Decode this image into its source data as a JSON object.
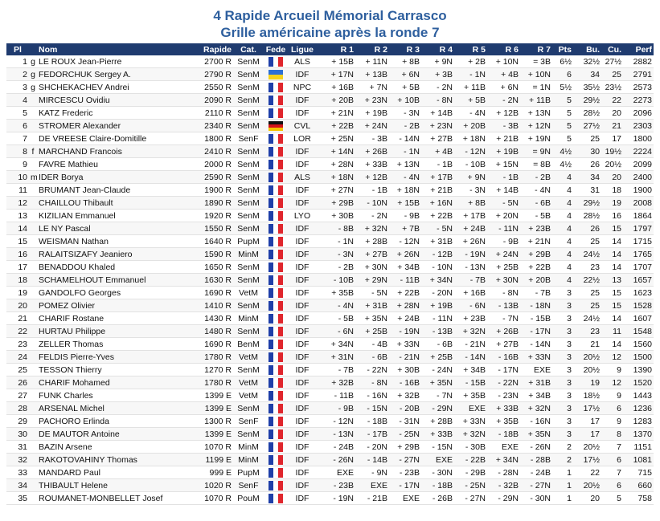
{
  "header": {
    "title": "4 Rapide Arcueil Mémorial Carrasco",
    "subtitle": "Grille américaine après la ronde 7"
  },
  "table": {
    "headers": [
      "Pl",
      "Nom",
      "Rapide",
      "Cat.",
      "Fede",
      "Ligue",
      "R 1",
      "R 2",
      "R 3",
      "R 4",
      "R 5",
      "R 6",
      "R 7",
      "Pts",
      "Bu.",
      "Cu.",
      "Perf"
    ],
    "rows": [
      [
        "1",
        "g",
        "LE ROUX Jean-Pierre",
        "2700 R",
        "SenM",
        "ALS",
        "+ 15B",
        "+ 11N",
        "+ 8B",
        "+ 9N",
        "+ 2B",
        "+ 10N",
        "= 3B",
        "6½",
        "32½",
        "27½",
        "2882"
      ],
      [
        "2",
        "g",
        "FEDORCHUK Sergey A.",
        "2790 R",
        "SenM",
        "IDF",
        "+ 17N",
        "+ 13B",
        "+ 6N",
        "+ 3B",
        "- 1N",
        "+ 4B",
        "+ 10N",
        "6",
        "34",
        "25",
        "2791"
      ],
      [
        "3",
        "g",
        "SHCHEKACHEV Andrei",
        "2550 R",
        "SenM",
        "NPC",
        "+ 16B",
        "+ 7N",
        "+ 5B",
        "- 2N",
        "+ 11B",
        "+ 6N",
        "= 1N",
        "5½",
        "35½",
        "23½",
        "2573"
      ],
      [
        "4",
        null,
        "MIRCESCU Ovidiu",
        "2090 R",
        "SenM",
        "IDF",
        "+ 20B",
        "+ 23N",
        "+ 10B",
        "- 8N",
        "+ 5B",
        "- 2N",
        "+ 11B",
        "5",
        "29½",
        "22",
        "2273"
      ],
      [
        "5",
        null,
        "KATZ Frederic",
        "2110 R",
        "SenM",
        "IDF",
        "+ 21N",
        "+ 19B",
        "- 3N",
        "+ 14B",
        "- 4N",
        "+ 12B",
        "+ 13N",
        "5",
        "28½",
        "20",
        "2096"
      ],
      [
        "6",
        null,
        "STROMER Alexander",
        "2340 R",
        "SenM",
        "CVL",
        "+ 22B",
        "+ 24N",
        "- 2B",
        "+ 23N",
        "+ 20B",
        "- 3B",
        "+ 12N",
        "5",
        "27½",
        "21",
        "2303"
      ],
      [
        "7",
        null,
        "DE VREESE Claire-Domitille",
        "1800 R",
        "SenF",
        "LOR",
        "+ 25N",
        "- 3B",
        "- 14N",
        "+ 27B",
        "+ 18N",
        "+ 21B",
        "+ 19N",
        "5",
        "25",
        "17",
        "1800"
      ],
      [
        "8",
        "f",
        "MARCHAND Francois",
        "2410 R",
        "SenM",
        "IDF",
        "+ 14N",
        "+ 26B",
        "- 1N",
        "+ 4B",
        "- 12N",
        "+ 19B",
        "= 9N",
        "4½",
        "30",
        "19½",
        "2224"
      ],
      [
        "9",
        null,
        "FAVRE Mathieu",
        "2000 R",
        "SenM",
        "IDF",
        "+ 28N",
        "+ 33B",
        "+ 13N",
        "- 1B",
        "- 10B",
        "+ 15N",
        "= 8B",
        "4½",
        "26",
        "20½",
        "2099"
      ],
      [
        "10",
        "m",
        "IDER Borya",
        "2590 R",
        "SenM",
        "ALS",
        "+ 18N",
        "+ 12B",
        "- 4N",
        "+ 17B",
        "+ 9N",
        "- 1B",
        "- 2B",
        "4",
        "34",
        "20",
        "2400"
      ],
      [
        "11",
        null,
        "BRUMANT Jean-Claude",
        "1900 R",
        "SenM",
        "IDF",
        "+ 27N",
        "- 1B",
        "+ 18N",
        "+ 21B",
        "- 3N",
        "+ 14B",
        "- 4N",
        "4",
        "31",
        "18",
        "1900"
      ],
      [
        "12",
        null,
        "CHAILLOU Thibault",
        "1890 R",
        "SenM",
        "IDF",
        "+ 29B",
        "- 10N",
        "+ 15B",
        "+ 16N",
        "+ 8B",
        "- 5N",
        "- 6B",
        "4",
        "29½",
        "19",
        "2008"
      ],
      [
        "13",
        null,
        "KIZILIAN Emmanuel",
        "1920 R",
        "SenM",
        "LYO",
        "+ 30B",
        "- 2N",
        "- 9B",
        "+ 22B",
        "+ 17B",
        "+ 20N",
        "- 5B",
        "4",
        "28½",
        "16",
        "1864"
      ],
      [
        "14",
        null,
        "LE NY Pascal",
        "1550 R",
        "SenM",
        "IDF",
        "- 8B",
        "+ 32N",
        "+ 7B",
        "- 5N",
        "+ 24B",
        "- 11N",
        "+ 23B",
        "4",
        "26",
        "15",
        "1797"
      ],
      [
        "15",
        null,
        "WEISMAN Nathan",
        "1640 R",
        "PupM",
        "IDF",
        "- 1N",
        "+ 28B",
        "- 12N",
        "+ 31B",
        "+ 26N",
        "- 9B",
        "+ 21N",
        "4",
        "25",
        "14",
        "1715"
      ],
      [
        "16",
        null,
        "RALAITSIZAFY Jeaniero",
        "1590 R",
        "MinM",
        "IDF",
        "- 3N",
        "+ 27B",
        "+ 26N",
        "- 12B",
        "- 19N",
        "+ 24N",
        "+ 29B",
        "4",
        "24½",
        "14",
        "1765"
      ],
      [
        "17",
        null,
        "BENADDOU Khaled",
        "1650 R",
        "SenM",
        "IDF",
        "- 2B",
        "+ 30N",
        "+ 34B",
        "- 10N",
        "- 13N",
        "+ 25B",
        "+ 22B",
        "4",
        "23",
        "14",
        "1707"
      ],
      [
        "18",
        null,
        "SCHAMELHOUT Emmanuel",
        "1630 R",
        "SenM",
        "IDF",
        "- 10B",
        "+ 29N",
        "- 11B",
        "+ 34N",
        "- 7B",
        "+ 30N",
        "+ 20B",
        "4",
        "22½",
        "13",
        "1657"
      ],
      [
        "19",
        null,
        "GANDOLFO Georges",
        "1690 R",
        "VetM",
        "IDF",
        "+ 35B",
        "- 5N",
        "+ 22B",
        "- 20N",
        "+ 16B",
        "- 8N",
        "- 7B",
        "3",
        "25",
        "15",
        "1623"
      ],
      [
        "20",
        null,
        "POMEZ Olivier",
        "1410 R",
        "SenM",
        "IDF",
        "- 4N",
        "+ 31B",
        "+ 28N",
        "+ 19B",
        "- 6N",
        "- 13B",
        "- 18N",
        "3",
        "25",
        "15",
        "1528"
      ],
      [
        "21",
        null,
        "CHARIF Rostane",
        "1430 R",
        "MinM",
        "IDF",
        "- 5B",
        "+ 35N",
        "+ 24B",
        "- 11N",
        "+ 23B",
        "- 7N",
        "- 15B",
        "3",
        "24½",
        "14",
        "1607"
      ],
      [
        "22",
        null,
        "HURTAU Philippe",
        "1480 R",
        "SenM",
        "IDF",
        "- 6N",
        "+ 25B",
        "- 19N",
        "- 13B",
        "+ 32N",
        "+ 26B",
        "- 17N",
        "3",
        "23",
        "11",
        "1548"
      ],
      [
        "23",
        null,
        "ZELLER Thomas",
        "1690 R",
        "BenM",
        "IDF",
        "+ 34N",
        "- 4B",
        "+ 33N",
        "- 6B",
        "- 21N",
        "+ 27B",
        "- 14N",
        "3",
        "21",
        "14",
        "1560"
      ],
      [
        "24",
        null,
        "FELDIS Pierre-Yves",
        "1780 R",
        "VetM",
        "IDF",
        "+ 31N",
        "- 6B",
        "- 21N",
        "+ 25B",
        "- 14N",
        "- 16B",
        "+ 33N",
        "3",
        "20½",
        "12",
        "1500"
      ],
      [
        "25",
        null,
        "TESSON Thierry",
        "1270 R",
        "SenM",
        "IDF",
        "- 7B",
        "- 22N",
        "+ 30B",
        "- 24N",
        "+ 34B",
        "- 17N",
        "EXE",
        "3",
        "20½",
        "9",
        "1390"
      ],
      [
        "26",
        null,
        "CHARIF Mohamed",
        "1780 R",
        "VetM",
        "IDF",
        "+ 32B",
        "- 8N",
        "- 16B",
        "+ 35N",
        "- 15B",
        "- 22N",
        "+ 31B",
        "3",
        "19",
        "12",
        "1520"
      ],
      [
        "27",
        null,
        "FUNK Charles",
        "1399 E",
        "VetM",
        "IDF",
        "- 11B",
        "- 16N",
        "+ 32B",
        "- 7N",
        "+ 35B",
        "- 23N",
        "+ 34B",
        "3",
        "18½",
        "9",
        "1443"
      ],
      [
        "28",
        null,
        "ARSENAL Michel",
        "1399 E",
        "SenM",
        "IDF",
        "- 9B",
        "- 15N",
        "- 20B",
        "- 29N",
        "EXE",
        "+ 33B",
        "+ 32N",
        "3",
        "17½",
        "6",
        "1236"
      ],
      [
        "29",
        null,
        "PACHORO Erlinda",
        "1300 R",
        "SenF",
        "IDF",
        "- 12N",
        "- 18B",
        "- 31N",
        "+ 28B",
        "+ 33N",
        "+ 35B",
        "- 16N",
        "3",
        "17",
        "9",
        "1283"
      ],
      [
        "30",
        null,
        "DE MAUTOR Antoine",
        "1399 E",
        "SenM",
        "IDF",
        "- 13N",
        "- 17B",
        "- 25N",
        "+ 33B",
        "+ 32N",
        "- 18B",
        "+ 35N",
        "3",
        "17",
        "8",
        "1370"
      ],
      [
        "31",
        null,
        "BAZIN Arsene",
        "1070 R",
        "MinM",
        "IDF",
        "- 24B",
        "- 20N",
        "+ 29B",
        "- 15N",
        "- 30B",
        "EXE",
        "- 26N",
        "2",
        "20½",
        "7",
        "1151"
      ],
      [
        "32",
        null,
        "RAKOTOVAHINY Thomas",
        "1199 E",
        "MinM",
        "IDF",
        "- 26N",
        "- 14B",
        "- 27N",
        "EXE",
        "- 22B",
        "+ 34N",
        "- 28B",
        "2",
        "17½",
        "6",
        "1081"
      ],
      [
        "33",
        null,
        "MANDARD Paul",
        "999 E",
        "PupM",
        "IDF",
        "EXE",
        "- 9N",
        "- 23B",
        "- 30N",
        "- 29B",
        "- 28N",
        "- 24B",
        "1",
        "22",
        "7",
        "715"
      ],
      [
        "34",
        null,
        "THIBAULT Helene",
        "1020 R",
        "SenF",
        "IDF",
        "- 23B",
        "EXE",
        "- 17N",
        "- 18B",
        "- 25N",
        "- 32B",
        "- 27N",
        "1",
        "20½",
        "6",
        "660"
      ],
      [
        "35",
        null,
        "ROUMANET-MONBELLET Josef",
        "1070 R",
        "PouM",
        "IDF",
        "- 19N",
        "- 21B",
        "EXE",
        "- 26B",
        "- 27N",
        "- 29N",
        "- 30N",
        "1",
        "20",
        "5",
        "758"
      ]
    ]
  }
}
